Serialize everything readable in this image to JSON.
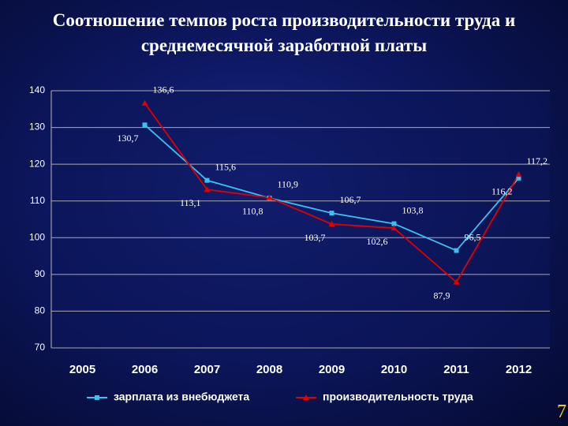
{
  "chart_data": {
    "type": "line",
    "title": "Соотношение темпов роста производительности труда и среднемесячной заработной платы",
    "categories": [
      "2005",
      "2006",
      "2007",
      "2008",
      "2009",
      "2010",
      "2011",
      "2012"
    ],
    "series": [
      {
        "name": "зарплата из внебюджета",
        "color": "#3cc0f0",
        "marker": "square",
        "values": [
          null,
          130.7,
          115.6,
          110.8,
          106.7,
          103.8,
          96.5,
          116.2
        ],
        "value_labels": [
          null,
          "130,7",
          "115,6",
          "110,8",
          "106,7",
          "103,8",
          "96,5",
          "116,2"
        ]
      },
      {
        "name": "производительность труда",
        "color": "#e00000",
        "marker": "triangle",
        "values": [
          null,
          136.6,
          113.1,
          110.9,
          103.7,
          102.6,
          87.9,
          117.2
        ],
        "value_labels": [
          null,
          "136,6",
          "113,1",
          "110,9",
          "103,7",
          "102,6",
          "87,9",
          "117,2"
        ]
      }
    ],
    "ylim": [
      70,
      140
    ],
    "yticks": [
      70,
      80,
      90,
      100,
      110,
      120,
      130,
      140
    ],
    "grid": true,
    "legend": "bottom",
    "slide_number": "7"
  }
}
